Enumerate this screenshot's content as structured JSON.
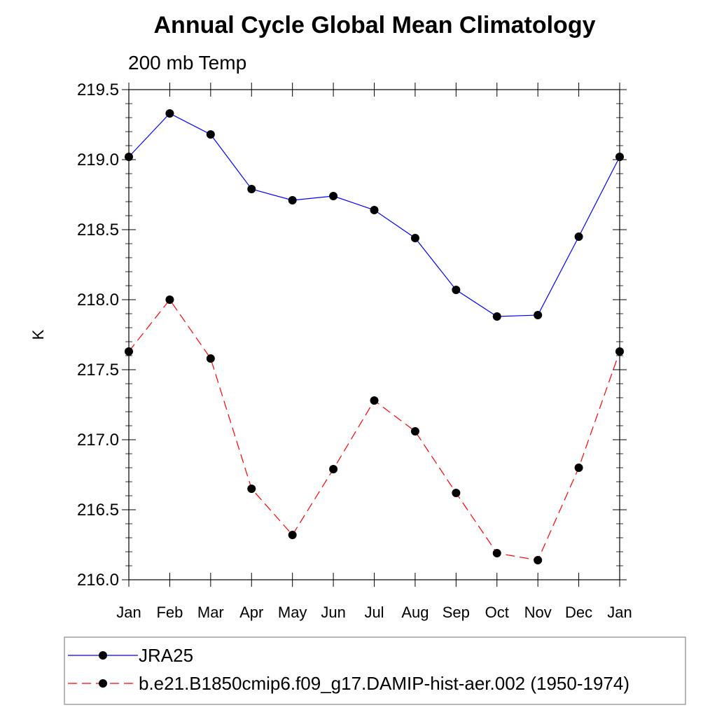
{
  "chart_data": {
    "type": "line",
    "title": "Annual Cycle Global Mean Climatology",
    "subtitle": "200 mb Temp",
    "xlabel": "",
    "ylabel": "K",
    "categories": [
      "Jan",
      "Feb",
      "Mar",
      "Apr",
      "May",
      "Jun",
      "Jul",
      "Aug",
      "Sep",
      "Oct",
      "Nov",
      "Dec",
      "Jan"
    ],
    "ylim": [
      216.0,
      219.5
    ],
    "yticks": [
      "216.0",
      "216.5",
      "217.0",
      "217.5",
      "218.0",
      "218.5",
      "219.0",
      "219.5"
    ],
    "grid": false,
    "legend_position": "bottom",
    "series": [
      {
        "name": "JRA25",
        "color": "#0000ff",
        "line_style": "solid",
        "marker": "filled-circle",
        "values": [
          219.02,
          219.33,
          219.18,
          218.79,
          218.71,
          218.74,
          218.64,
          218.44,
          218.07,
          217.88,
          217.89,
          218.45,
          219.02
        ]
      },
      {
        "name": "b.e21.B1850cmip6.f09_g17.DAMIP-hist-aer.002 (1950-1974)",
        "color": "#ff0000",
        "line_style": "dashed",
        "marker": "filled-circle",
        "values": [
          217.63,
          218.0,
          217.58,
          216.65,
          216.32,
          216.79,
          217.28,
          217.06,
          216.62,
          216.19,
          216.14,
          216.8,
          217.63
        ]
      }
    ]
  }
}
